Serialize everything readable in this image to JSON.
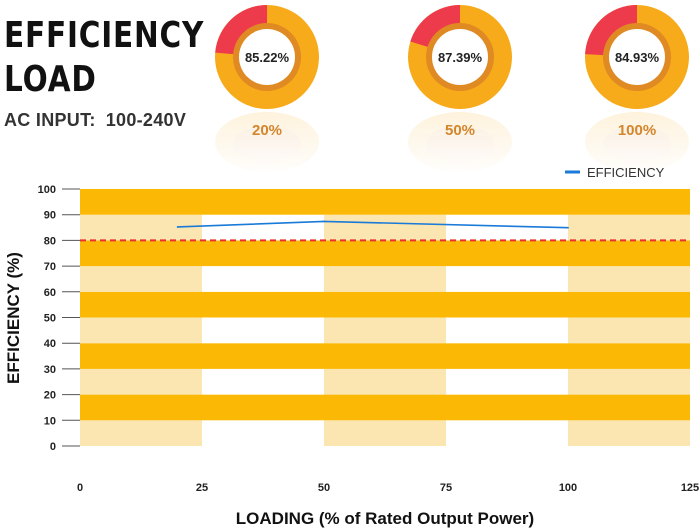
{
  "header": {
    "title_line1": "EFFICIENCY",
    "title_line2": "LOAD",
    "input_label": "AC INPUT:",
    "input_value": "100-240V"
  },
  "donuts": [
    {
      "value": "85.22%",
      "fraction": 0.8522,
      "load": "20%"
    },
    {
      "value": "87.39%",
      "fraction": 0.8739,
      "load": "50%"
    },
    {
      "value": "84.93%",
      "fraction": 0.8493,
      "load": "100%"
    }
  ],
  "colors": {
    "band_dark": "#fbb906",
    "band_light": "#fbe5b0",
    "white_band": "#ffffff",
    "line": "#1a7ad8",
    "reference": "#e8302c",
    "donut_outer": "#f7ab1b",
    "donut_inner": "#df8a22",
    "donut_slice": "#ee3b4b",
    "load_text": "#d4862a"
  },
  "chart_data": {
    "type": "line",
    "title": "",
    "xlabel": "LOADING (% of Rated Output Power)",
    "ylabel": "EFFICIENCY (%)",
    "xlim": [
      0,
      125
    ],
    "ylim": [
      0,
      100
    ],
    "x_ticks": [
      "0",
      "25",
      "50",
      "75",
      "100",
      "125"
    ],
    "y_ticks": [
      "0",
      "10",
      "20",
      "30",
      "40",
      "50",
      "60",
      "70",
      "80",
      "90",
      "100"
    ],
    "series": [
      {
        "name": "EFFICIENCY",
        "x": [
          20,
          50,
          100
        ],
        "y": [
          85.22,
          87.39,
          84.93
        ]
      }
    ],
    "reference_line": {
      "y": 80
    },
    "legend": "top-right",
    "grid": false
  }
}
